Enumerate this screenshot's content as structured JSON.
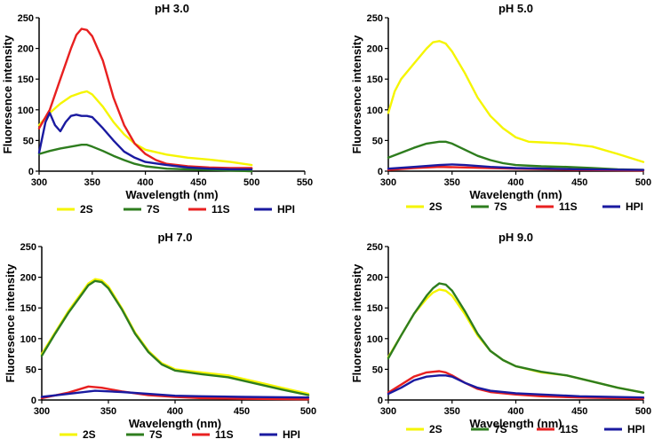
{
  "chart_data": [
    {
      "type": "line",
      "title": "pH 3.0",
      "xlabel": "Wavelength (nm)",
      "ylabel": "Fluoresence intensity",
      "xlim": [
        300,
        550
      ],
      "ylim": [
        0,
        250
      ],
      "xticks": [
        300,
        350,
        400,
        450,
        500,
        550
      ],
      "yticks": [
        0,
        50,
        100,
        150,
        200,
        250
      ],
      "legend_position": "bottom",
      "series": [
        {
          "name": "2S",
          "color": "#f5f500",
          "x": [
            300,
            310,
            320,
            330,
            340,
            345,
            350,
            360,
            370,
            380,
            390,
            400,
            420,
            440,
            460,
            480,
            500
          ],
          "y": [
            75,
            95,
            110,
            122,
            128,
            130,
            125,
            105,
            80,
            60,
            45,
            35,
            27,
            22,
            19,
            15,
            10
          ]
        },
        {
          "name": "7S",
          "color": "#2e7d1e",
          "x": [
            300,
            310,
            320,
            330,
            340,
            345,
            350,
            360,
            370,
            380,
            390,
            400,
            420,
            440,
            460,
            480,
            500
          ],
          "y": [
            28,
            33,
            37,
            40,
            43,
            43,
            40,
            33,
            25,
            18,
            12,
            8,
            4,
            3,
            2,
            1,
            0
          ]
        },
        {
          "name": "11S",
          "color": "#e82020",
          "x": [
            300,
            310,
            320,
            330,
            335,
            340,
            345,
            350,
            360,
            370,
            380,
            390,
            400,
            410,
            420,
            440,
            460,
            480,
            500
          ],
          "y": [
            70,
            100,
            150,
            200,
            222,
            232,
            230,
            220,
            180,
            120,
            75,
            45,
            28,
            18,
            12,
            8,
            6,
            5,
            5
          ]
        },
        {
          "name": "HPI",
          "color": "#1a1aa0",
          "x": [
            300,
            303,
            306,
            310,
            315,
            320,
            325,
            330,
            335,
            340,
            345,
            350,
            360,
            370,
            380,
            390,
            400,
            420,
            440,
            460,
            480,
            500
          ],
          "y": [
            30,
            55,
            80,
            95,
            75,
            65,
            80,
            90,
            92,
            90,
            90,
            88,
            70,
            50,
            32,
            22,
            15,
            10,
            6,
            4,
            3,
            3
          ]
        }
      ]
    },
    {
      "type": "line",
      "title": "pH 5.0",
      "xlabel": "Wavelength (nm)",
      "ylabel": "Fluoresence intensity",
      "xlim": [
        300,
        500
      ],
      "ylim": [
        0,
        250
      ],
      "xticks": [
        300,
        350,
        400,
        450,
        500
      ],
      "yticks": [
        0,
        50,
        100,
        150,
        200,
        250
      ],
      "legend_position": "bottom",
      "series": [
        {
          "name": "2S",
          "color": "#f5f500",
          "x": [
            300,
            305,
            310,
            320,
            330,
            335,
            340,
            345,
            350,
            360,
            370,
            380,
            390,
            400,
            410,
            420,
            440,
            460,
            480,
            500
          ],
          "y": [
            95,
            130,
            150,
            175,
            200,
            210,
            212,
            208,
            195,
            160,
            120,
            90,
            70,
            55,
            48,
            47,
            45,
            40,
            28,
            15
          ]
        },
        {
          "name": "7S",
          "color": "#2e7d1e",
          "x": [
            300,
            310,
            320,
            330,
            340,
            345,
            350,
            360,
            370,
            380,
            390,
            400,
            420,
            440,
            460,
            480,
            500
          ],
          "y": [
            22,
            30,
            38,
            45,
            48,
            48,
            45,
            35,
            25,
            18,
            13,
            10,
            8,
            7,
            5,
            3,
            2
          ]
        },
        {
          "name": "11S",
          "color": "#e82020",
          "x": [
            300,
            320,
            340,
            360,
            380,
            400,
            450,
            500
          ],
          "y": [
            2,
            5,
            7,
            6,
            5,
            4,
            2,
            1
          ]
        },
        {
          "name": "HPI",
          "color": "#1a1aa0",
          "x": [
            300,
            320,
            340,
            350,
            360,
            380,
            400,
            450,
            500
          ],
          "y": [
            4,
            7,
            10,
            11,
            10,
            7,
            5,
            3,
            2
          ]
        }
      ]
    },
    {
      "type": "line",
      "title": "pH 7.0",
      "xlabel": "Wavelength (nm)",
      "ylabel": "Fluoresence intensity",
      "xlim": [
        300,
        500
      ],
      "ylim": [
        0,
        250
      ],
      "xticks": [
        300,
        350,
        400,
        450,
        500
      ],
      "yticks": [
        0,
        50,
        100,
        150,
        200,
        250
      ],
      "legend_position": "bottom",
      "series": [
        {
          "name": "2S",
          "color": "#f5f500",
          "x": [
            300,
            310,
            320,
            330,
            335,
            340,
            345,
            350,
            360,
            370,
            380,
            390,
            400,
            420,
            440,
            460,
            480,
            500
          ],
          "y": [
            75,
            110,
            145,
            175,
            190,
            197,
            195,
            185,
            150,
            110,
            80,
            60,
            50,
            45,
            40,
            30,
            20,
            10
          ]
        },
        {
          "name": "7S",
          "color": "#2e7d1e",
          "x": [
            300,
            310,
            320,
            330,
            335,
            340,
            345,
            350,
            360,
            370,
            380,
            390,
            400,
            420,
            440,
            460,
            480,
            500
          ],
          "y": [
            72,
            108,
            142,
            172,
            187,
            194,
            192,
            182,
            148,
            108,
            78,
            58,
            48,
            42,
            37,
            27,
            17,
            8
          ]
        },
        {
          "name": "11S",
          "color": "#e82020",
          "x": [
            300,
            320,
            335,
            345,
            360,
            380,
            400,
            420,
            450,
            500
          ],
          "y": [
            3,
            12,
            22,
            20,
            14,
            8,
            5,
            3,
            2,
            1
          ]
        },
        {
          "name": "HPI",
          "color": "#1a1aa0",
          "x": [
            300,
            320,
            340,
            360,
            380,
            400,
            420,
            450,
            500
          ],
          "y": [
            5,
            10,
            15,
            13,
            10,
            7,
            6,
            5,
            4
          ]
        }
      ]
    },
    {
      "type": "line",
      "title": "pH 9.0",
      "xlabel": "Wavelength (nm)",
      "ylabel": "Fluoresence intensity",
      "xlim": [
        300,
        500
      ],
      "ylim": [
        0,
        250
      ],
      "xticks": [
        300,
        350,
        400,
        450,
        500
      ],
      "yticks": [
        0,
        50,
        100,
        150,
        200,
        250
      ],
      "legend_position": "bottom",
      "series": [
        {
          "name": "2S",
          "color": "#f5f500",
          "x": [
            300,
            310,
            320,
            330,
            335,
            340,
            345,
            350,
            360,
            370,
            380,
            390,
            400,
            420,
            440,
            460,
            480,
            500
          ],
          "y": [
            70,
            105,
            140,
            165,
            175,
            180,
            178,
            170,
            140,
            105,
            80,
            65,
            55,
            45,
            40,
            30,
            20,
            12
          ]
        },
        {
          "name": "7S",
          "color": "#2e7d1e",
          "x": [
            300,
            310,
            320,
            330,
            335,
            340,
            345,
            350,
            360,
            370,
            380,
            390,
            400,
            420,
            440,
            460,
            480,
            500
          ],
          "y": [
            68,
            105,
            140,
            170,
            182,
            190,
            188,
            178,
            145,
            108,
            80,
            65,
            55,
            46,
            40,
            30,
            20,
            12
          ]
        },
        {
          "name": "11S",
          "color": "#e82020",
          "x": [
            300,
            310,
            320,
            330,
            340,
            345,
            350,
            360,
            370,
            380,
            400,
            420,
            450,
            500
          ],
          "y": [
            12,
            25,
            38,
            45,
            47,
            45,
            40,
            28,
            18,
            13,
            9,
            6,
            4,
            2
          ]
        },
        {
          "name": "HPI",
          "color": "#1a1aa0",
          "x": [
            300,
            310,
            320,
            330,
            340,
            345,
            350,
            360,
            370,
            380,
            400,
            420,
            450,
            500
          ],
          "y": [
            10,
            20,
            32,
            38,
            40,
            40,
            38,
            28,
            20,
            15,
            11,
            9,
            6,
            4
          ]
        }
      ]
    }
  ]
}
